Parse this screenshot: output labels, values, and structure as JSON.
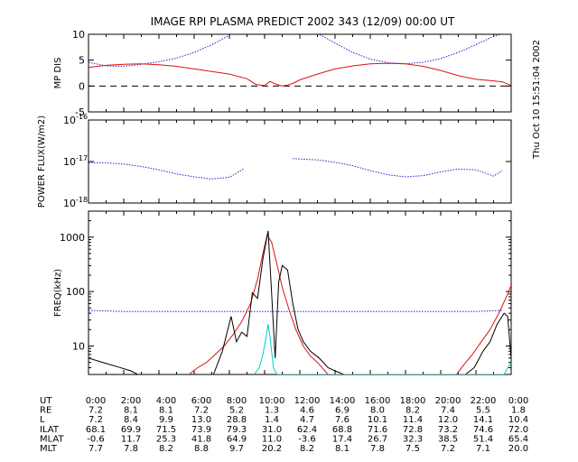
{
  "title": "IMAGE  RPI PLASMA PREDICT 2002 343 (12/09) 00:00 UT",
  "timestamp": "Thu Oct 10 15:51:04 2002",
  "colors": {
    "blue": "#2222cc",
    "red": "#dd1111",
    "black": "#000000",
    "cyan": "#00cccc"
  },
  "chart_data": [
    {
      "type": "line",
      "panel": "mp_distance",
      "ylabel": "MP DIS",
      "ylim": [
        -5,
        10
      ],
      "ytick_labels": [
        "-5",
        "0",
        "5",
        "10"
      ],
      "ytick_values": [
        -5,
        0,
        5,
        10
      ],
      "reference_line": 0,
      "series": [
        {
          "color": "blue",
          "style": "dotted",
          "x": [
            0,
            1,
            2,
            3,
            4,
            5,
            6,
            7,
            8,
            9,
            10,
            11,
            12,
            13,
            14,
            15,
            16,
            17,
            18,
            19,
            20,
            21,
            22,
            23,
            24
          ],
          "y": [
            4.6,
            3.9,
            3.8,
            4.2,
            4.7,
            5.4,
            6.5,
            8.0,
            9.8,
            11.5,
            11.5,
            null,
            11.5,
            10.2,
            8.3,
            6.5,
            5.2,
            4.5,
            4.3,
            4.6,
            5.3,
            6.5,
            8.0,
            9.6,
            10.6
          ]
        },
        {
          "color": "red",
          "style": "solid",
          "x": [
            0,
            1,
            2,
            3,
            4,
            5,
            6,
            7,
            8,
            9,
            9.5,
            10,
            10.3,
            10.6,
            11,
            11.3,
            11.6,
            12,
            13,
            14,
            15,
            16,
            17,
            18,
            19,
            20,
            21,
            22,
            23,
            23.5,
            24
          ],
          "y": [
            3.6,
            4.0,
            4.2,
            4.3,
            4.1,
            3.8,
            3.3,
            2.8,
            2.3,
            1.4,
            0.3,
            0.1,
            0.9,
            0.4,
            0.0,
            0.2,
            0.5,
            1.2,
            2.3,
            3.3,
            3.9,
            4.3,
            4.4,
            4.3,
            3.8,
            3.0,
            2.0,
            1.3,
            1.0,
            0.8,
            0.1
          ]
        }
      ]
    },
    {
      "type": "line",
      "panel": "power_flux",
      "ylabel": "POWER FLUX(W/m2)",
      "yscale": "log",
      "ylim": [
        1e-18,
        1e-16
      ],
      "ytick_labels": [
        {
          "base": "10",
          "exp": "-16"
        },
        {
          "base": "10",
          "exp": "-17"
        },
        {
          "base": "10",
          "exp": "-18"
        }
      ],
      "ytick_values": [
        -16,
        -17,
        -18
      ],
      "series": [
        {
          "color": "blue",
          "style": "dotted",
          "x": [
            0,
            1,
            2,
            3,
            4,
            5,
            6,
            7,
            8,
            8.8,
            null,
            11.6,
            12,
            13,
            14,
            15,
            16,
            17,
            18,
            19,
            20,
            21,
            22,
            23,
            23.5
          ],
          "y": [
            -17.03,
            -17.03,
            -17.06,
            -17.12,
            -17.2,
            -17.3,
            -17.37,
            -17.42,
            -17.38,
            -17.18,
            null,
            -16.93,
            -16.94,
            -16.96,
            -17.02,
            -17.1,
            -17.22,
            -17.32,
            -17.37,
            -17.34,
            -17.25,
            -17.18,
            -17.2,
            -17.35,
            -17.22
          ]
        }
      ]
    },
    {
      "type": "line",
      "panel": "frequency",
      "ylabel": "FREQ(kHz)",
      "yscale": "log",
      "ylim": [
        3,
        3000
      ],
      "ytick_labels": [
        "10",
        "100",
        "1000"
      ],
      "ytick_values": [
        10,
        100,
        1000
      ],
      "series": [
        {
          "color": "blue",
          "style": "dotted",
          "x": [
            0,
            2,
            4,
            6,
            8,
            10,
            12,
            14,
            16,
            18,
            20,
            22,
            23.5
          ],
          "y": [
            45,
            43,
            43,
            43,
            43,
            43,
            43,
            43,
            43,
            43,
            43,
            43,
            45
          ]
        },
        {
          "color": "red",
          "style": "solid",
          "x": [
            5.7,
            6.2,
            6.7,
            7.2,
            7.7,
            8.2,
            8.7,
            9.2,
            9.6,
            9.9,
            10.15,
            10.4,
            10.7,
            11.0,
            11.4,
            11.8,
            12.2,
            12.6,
            13.0,
            13.6,
            20.9,
            21.3,
            21.8,
            22.3,
            22.8,
            23.3,
            23.8,
            24
          ],
          "y": [
            3,
            4,
            5,
            7,
            10,
            16,
            28,
            60,
            170,
            500,
            1100,
            800,
            320,
            120,
            45,
            19,
            10,
            6.5,
            5,
            3,
            3,
            4.5,
            7,
            12,
            20,
            40,
            90,
            130
          ]
        },
        {
          "color": "black",
          "style": "solid",
          "x": [
            0,
            0.8,
            1.6,
            2.4,
            2.8,
            null,
            7.1,
            7.6,
            8.1,
            8.4,
            8.7,
            9.0,
            9.3,
            9.6,
            9.9,
            10.2,
            10.4,
            10.6,
            10.8,
            11.0,
            11.3,
            11.6,
            11.9,
            12.2,
            12.6,
            13.1,
            13.6,
            14.0,
            14.5,
            null,
            21.4,
            21.9,
            22.4,
            22.8,
            23.2,
            23.6,
            23.8,
            24
          ],
          "y": [
            6,
            5,
            4.2,
            3.5,
            3,
            null,
            3,
            8,
            35,
            12,
            18,
            15,
            95,
            75,
            400,
            1300,
            90,
            6,
            150,
            300,
            250,
            60,
            20,
            12,
            8,
            6,
            4,
            3.5,
            3,
            null,
            3,
            4,
            8,
            12,
            25,
            40,
            35,
            6
          ]
        },
        {
          "color": "cyan",
          "style": "solid",
          "x": [
            9.4,
            9.7,
            9.9,
            10.1,
            10.2,
            10.3,
            10.5,
            10.7,
            10.9,
            23.6,
            23.8,
            24
          ],
          "y": [
            3,
            4,
            7,
            15,
            25,
            15,
            4,
            3,
            3,
            3,
            4,
            5
          ]
        }
      ]
    }
  ],
  "x_axis": {
    "xlim": [
      0,
      24
    ],
    "xlabel": "UT",
    "tick_labels": [
      "0:00",
      "2:00",
      "4:00",
      "6:00",
      "8:00",
      "10:00",
      "12:00",
      "14:00",
      "16:00",
      "18:00",
      "20:00",
      "22:00",
      "0:00"
    ]
  },
  "ephemeris": [
    {
      "label": "RE",
      "values": [
        "7.2",
        "8.1",
        "8.1",
        "7.2",
        "5.2",
        "1.3",
        "4.6",
        "6.9",
        "8.0",
        "8.2",
        "7.4",
        "5.5",
        "1.8"
      ]
    },
    {
      "label": "L",
      "values": [
        "7.2",
        "8.4",
        "9.9",
        "13.0",
        "28.8",
        "1.4",
        "4.7",
        "7.6",
        "10.1",
        "11.4",
        "12.0",
        "14.1",
        "10.4"
      ]
    },
    {
      "label": "ILAT",
      "values": [
        "68.1",
        "69.9",
        "71.5",
        "73.9",
        "79.3",
        "31.0",
        "62.4",
        "68.8",
        "71.6",
        "72.8",
        "73.2",
        "74.6",
        "72.0"
      ]
    },
    {
      "label": "MLAT",
      "values": [
        "-0.6",
        "11.7",
        "25.3",
        "41.8",
        "64.9",
        "11.0",
        "-3.6",
        "17.4",
        "26.7",
        "32.3",
        "38.5",
        "51.4",
        "65.4"
      ]
    },
    {
      "label": "MLT",
      "values": [
        "7.7",
        "7.8",
        "8.2",
        "8.8",
        "9.7",
        "20.2",
        "8.2",
        "8.1",
        "7.8",
        "7.5",
        "7.2",
        "7.1",
        "20.0"
      ]
    }
  ]
}
